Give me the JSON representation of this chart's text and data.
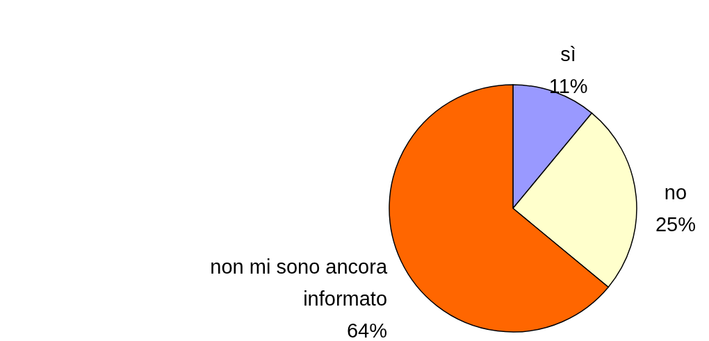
{
  "chart_data": {
    "type": "pie",
    "categories": [
      "sì",
      "no",
      "non mi sono ancora informato"
    ],
    "values": [
      11,
      25,
      64
    ],
    "colors": [
      "#9999ff",
      "#ffffcc",
      "#ff6600"
    ],
    "value_labels": [
      "11%",
      "25%",
      "64%"
    ]
  }
}
